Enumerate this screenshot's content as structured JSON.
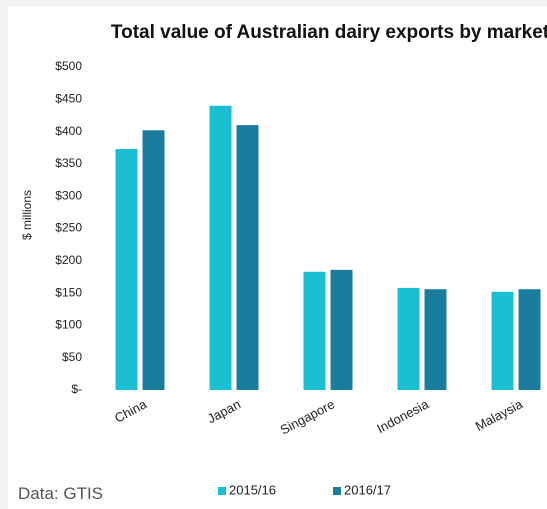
{
  "chart_data": {
    "type": "bar",
    "title": "Total value of Australian dairy exports by market",
    "y_label": "$ millions",
    "source": "Data: GTIS",
    "categories": [
      "China",
      "Japan",
      "Singapore",
      "Indonesia",
      "Malaysia"
    ],
    "series": [
      {
        "name": "2015/16",
        "color": "#1abfd2",
        "values": [
          373,
          440,
          183,
          158,
          152
        ]
      },
      {
        "name": "2016/17",
        "color": "#1a7d9e",
        "values": [
          402,
          410,
          186,
          156,
          156
        ]
      }
    ],
    "ylim": [
      0,
      500
    ],
    "yticks": [
      {
        "value": 0,
        "label": "$-"
      },
      {
        "value": 50,
        "label": "$50"
      },
      {
        "value": 100,
        "label": "$100"
      },
      {
        "value": 150,
        "label": "$150"
      },
      {
        "value": 200,
        "label": "$200"
      },
      {
        "value": 250,
        "label": "$250"
      },
      {
        "value": 300,
        "label": "$300"
      },
      {
        "value": 350,
        "label": "$350"
      },
      {
        "value": 400,
        "label": "$400"
      },
      {
        "value": 450,
        "label": "$450"
      },
      {
        "value": 500,
        "label": "$500"
      }
    ],
    "grid": false,
    "legend": "bottom"
  }
}
